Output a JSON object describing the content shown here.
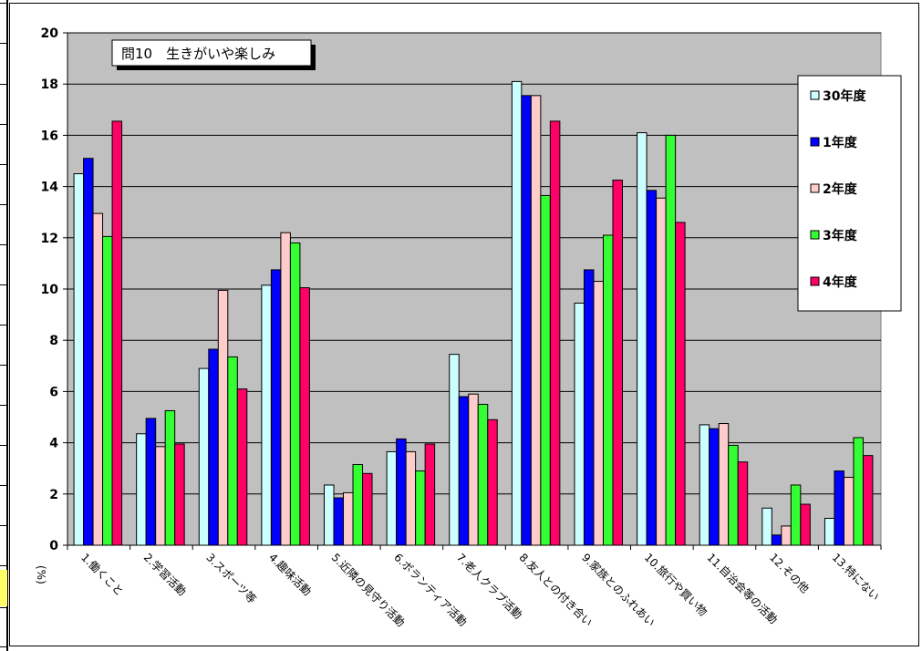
{
  "chart_data": {
    "type": "bar",
    "title": "問10　生きがいや楽しみ",
    "ylabel": "(%)",
    "ylim": [
      0,
      20
    ],
    "yticks": [
      0,
      2,
      4,
      6,
      8,
      10,
      12,
      14,
      16,
      18,
      20
    ],
    "grid": true,
    "legend_position": "right",
    "categories": [
      "1.働くこと",
      "2.学習活動",
      "3.スポーツ等",
      "4.趣味活動",
      "5.近隣の見守り活動",
      "6.ボランティア活動",
      "7.老人クラブ活動",
      "8.友人との付き合い",
      "9.家族とのふれあい",
      "10.旅行や買い物",
      "11.自治会等の活動",
      "12.その他",
      "13.特にない"
    ],
    "series": [
      {
        "name": "30年度",
        "color": "#ccffff",
        "values": [
          14.5,
          4.35,
          6.9,
          10.15,
          2.35,
          3.65,
          7.45,
          18.1,
          9.45,
          16.1,
          4.7,
          1.45,
          1.05
        ]
      },
      {
        "name": "1年度",
        "color": "#0000ff",
        "values": [
          15.1,
          4.95,
          7.65,
          10.75,
          1.85,
          4.15,
          5.8,
          17.55,
          10.75,
          13.85,
          4.55,
          0.4,
          2.9
        ]
      },
      {
        "name": "2年度",
        "color": "#ffcccc",
        "values": [
          12.95,
          3.85,
          9.95,
          12.2,
          2.05,
          3.65,
          5.9,
          17.55,
          10.3,
          13.55,
          4.75,
          0.75,
          2.65
        ]
      },
      {
        "name": "3年度",
        "color": "#33ff33",
        "values": [
          12.05,
          5.25,
          7.35,
          11.8,
          3.15,
          2.9,
          5.5,
          13.65,
          12.1,
          16.0,
          3.9,
          2.35,
          4.2
        ]
      },
      {
        "name": "4年度",
        "color": "#ff0066",
        "values": [
          16.55,
          3.95,
          6.1,
          10.05,
          2.8,
          3.95,
          4.9,
          16.55,
          14.25,
          12.6,
          3.25,
          1.6,
          3.5
        ]
      }
    ]
  }
}
